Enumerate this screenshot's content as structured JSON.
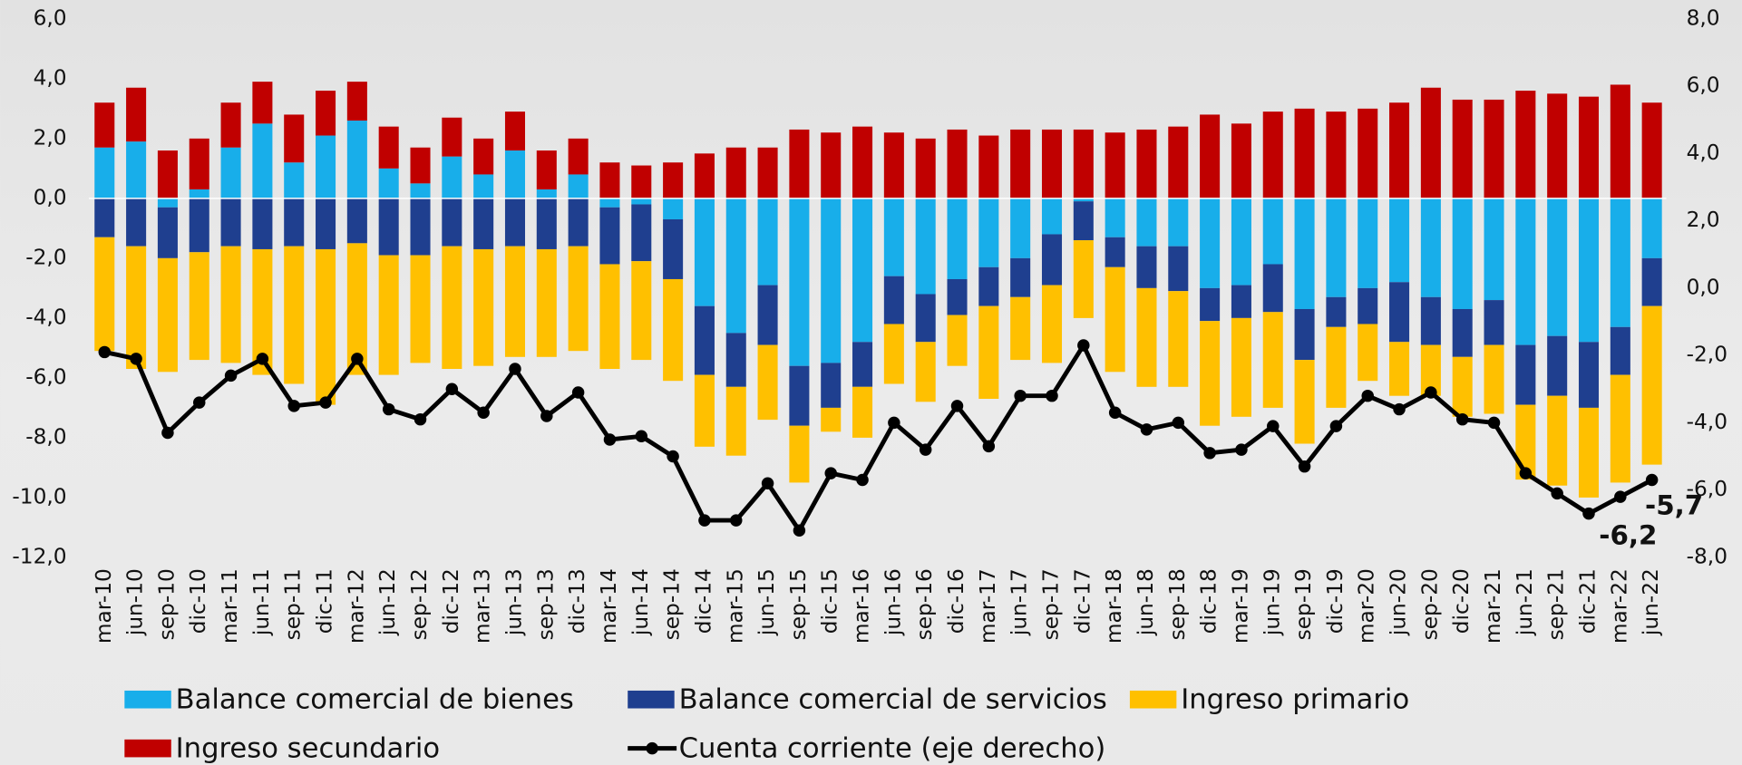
{
  "chart_data": {
    "type": "stacked-bar-line",
    "categories": [
      "mar-10",
      "jun-10",
      "sep-10",
      "dic-10",
      "mar-11",
      "jun-11",
      "sep-11",
      "dic-11",
      "mar-12",
      "jun-12",
      "sep-12",
      "dic-12",
      "mar-13",
      "jun-13",
      "sep-13",
      "dic-13",
      "mar-14",
      "jun-14",
      "sep-14",
      "dic-14",
      "mar-15",
      "jun-15",
      "sep-15",
      "dic-15",
      "mar-16",
      "jun-16",
      "sep-16",
      "dic-16",
      "mar-17",
      "jun-17",
      "sep-17",
      "dic-17",
      "mar-18",
      "jun-18",
      "sep-18",
      "dic-18",
      "mar-19",
      "jun-19",
      "sep-19",
      "dic-19",
      "mar-20",
      "jun-20",
      "sep-20",
      "dic-20",
      "mar-21",
      "jun-21",
      "sep-21",
      "dic-21",
      "mar-22",
      "jun-22"
    ],
    "series": [
      {
        "name": "Balance comercial de bienes",
        "color": "#18aeea",
        "values": [
          1.7,
          1.9,
          -0.3,
          0.3,
          1.7,
          2.5,
          1.2,
          2.1,
          2.6,
          1.0,
          0.5,
          1.4,
          0.8,
          1.6,
          0.3,
          0.8,
          -0.3,
          -0.2,
          -0.7,
          -3.6,
          -4.5,
          -2.9,
          -5.6,
          -5.5,
          -4.8,
          -2.6,
          -3.2,
          -2.7,
          -2.3,
          -2.0,
          -1.2,
          -0.1,
          -1.3,
          -1.6,
          -1.6,
          -3.0,
          -2.9,
          -2.2,
          -3.7,
          -3.3,
          -3.0,
          -2.8,
          -3.3,
          -3.7,
          -3.4,
          -4.9,
          -4.6,
          -4.8,
          -4.3,
          -2.0
        ]
      },
      {
        "name": "Balance comercial de servicios",
        "color": "#1f3f8f",
        "values": [
          -1.3,
          -1.6,
          -1.7,
          -1.8,
          -1.6,
          -1.7,
          -1.6,
          -1.7,
          -1.5,
          -1.9,
          -1.9,
          -1.6,
          -1.7,
          -1.6,
          -1.7,
          -1.6,
          -1.9,
          -1.9,
          -2.0,
          -2.3,
          -1.8,
          -2.0,
          -2.0,
          -1.5,
          -1.5,
          -1.6,
          -1.6,
          -1.2,
          -1.3,
          -1.3,
          -1.7,
          -1.3,
          -1.0,
          -1.4,
          -1.5,
          -1.1,
          -1.1,
          -1.6,
          -1.7,
          -1.0,
          -1.2,
          -2.0,
          -1.6,
          -1.6,
          -1.5,
          -2.0,
          -2.0,
          -2.2,
          -1.6,
          -1.6
        ]
      },
      {
        "name": "Ingreso primario",
        "color": "#ffc000",
        "values": [
          -3.8,
          -4.1,
          -3.8,
          -3.6,
          -3.9,
          -4.2,
          -4.6,
          -5.2,
          -4.4,
          -4.0,
          -3.6,
          -4.1,
          -3.9,
          -3.7,
          -3.6,
          -3.5,
          -3.5,
          -3.3,
          -3.4,
          -2.4,
          -2.3,
          -2.5,
          -1.9,
          -0.8,
          -1.7,
          -2.0,
          -2.0,
          -1.7,
          -3.1,
          -2.1,
          -2.6,
          -2.6,
          -3.5,
          -3.3,
          -3.2,
          -3.5,
          -3.3,
          -3.2,
          -2.8,
          -2.7,
          -1.9,
          -1.8,
          -1.7,
          -2.0,
          -2.3,
          -2.5,
          -3.0,
          -3.0,
          -3.6,
          -5.3
        ]
      },
      {
        "name": "Ingreso secundario",
        "color": "#c00000",
        "values": [
          1.5,
          1.8,
          1.6,
          1.7,
          1.5,
          1.4,
          1.6,
          1.5,
          1.3,
          1.4,
          1.2,
          1.3,
          1.2,
          1.3,
          1.3,
          1.2,
          1.2,
          1.1,
          1.2,
          1.5,
          1.7,
          1.7,
          2.3,
          2.2,
          2.4,
          2.2,
          2.0,
          2.3,
          2.1,
          2.3,
          2.3,
          2.3,
          2.2,
          2.3,
          2.4,
          2.8,
          2.5,
          2.9,
          3.0,
          2.9,
          3.0,
          3.2,
          3.7,
          3.3,
          3.3,
          3.6,
          3.5,
          3.4,
          3.8,
          3.2
        ]
      },
      {
        "name": "Cuenta corriente (eje derecho)",
        "color": "#000000",
        "type": "line",
        "axis": "y2",
        "values": [
          -1.9,
          -2.1,
          -4.3,
          -3.4,
          -2.6,
          -2.1,
          -3.5,
          -3.4,
          -2.1,
          -3.6,
          -3.9,
          -3.0,
          -3.7,
          -2.4,
          -3.8,
          -3.1,
          -4.5,
          -4.4,
          -5.0,
          -6.9,
          -6.9,
          -5.8,
          -7.2,
          -5.5,
          -5.7,
          -4.0,
          -4.8,
          -3.5,
          -4.7,
          -3.2,
          -3.2,
          -1.7,
          -3.7,
          -4.2,
          -4.0,
          -4.9,
          -4.8,
          -4.1,
          -5.3,
          -4.1,
          -3.2,
          -3.6,
          -3.1,
          -3.9,
          -4.0,
          -5.5,
          -6.1,
          -6.7,
          -6.2,
          -5.7
        ],
        "value_labels": [
          null,
          null,
          null,
          null,
          null,
          null,
          null,
          null,
          null,
          null,
          null,
          null,
          null,
          null,
          null,
          null,
          null,
          null,
          null,
          null,
          null,
          null,
          null,
          null,
          null,
          null,
          null,
          null,
          null,
          null,
          null,
          null,
          null,
          null,
          null,
          null,
          null,
          null,
          null,
          null,
          null,
          null,
          null,
          null,
          null,
          null,
          null,
          null,
          "-6,2",
          "-5,7"
        ]
      }
    ],
    "ylim": [
      -12,
      6
    ],
    "yticks": [
      {
        "value": 6,
        "label": "6,0"
      },
      {
        "value": 4,
        "label": "4,0"
      },
      {
        "value": 2,
        "label": "2,0"
      },
      {
        "value": 0,
        "label": "0,0"
      },
      {
        "value": -2,
        "label": "-2,0"
      },
      {
        "value": -4,
        "label": "-4,0"
      },
      {
        "value": -6,
        "label": "-6,0"
      },
      {
        "value": -8,
        "label": "-8,0"
      },
      {
        "value": -10,
        "label": "-10,0"
      },
      {
        "value": -12,
        "label": "-12,0"
      }
    ],
    "y2lim": [
      -8,
      8
    ],
    "y2ticks": [
      {
        "value": 8,
        "label": "8,0"
      },
      {
        "value": 6,
        "label": "6,0"
      },
      {
        "value": 4,
        "label": "4,0"
      },
      {
        "value": 2,
        "label": "2,0"
      },
      {
        "value": 0,
        "label": "0,0"
      },
      {
        "value": -2,
        "label": "-2,0"
      },
      {
        "value": -4,
        "label": "-4,0"
      },
      {
        "value": -6,
        "label": "-6,0"
      },
      {
        "value": -8,
        "label": "-8,0"
      }
    ],
    "legend": "bottom"
  }
}
